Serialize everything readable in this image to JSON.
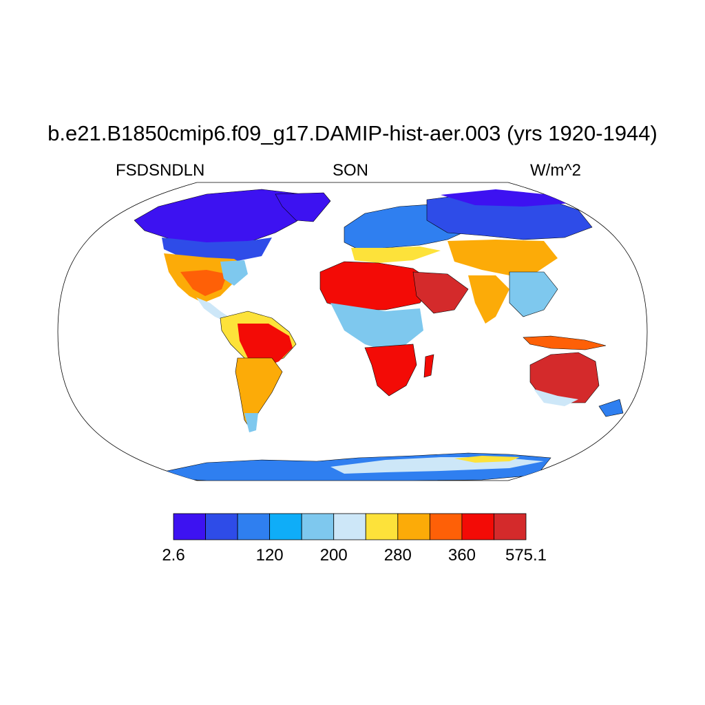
{
  "title": "b.e21.B1850cmip6.f09_g17.DAMIP-hist-aer.003 (yrs 1920-1944)",
  "variable": "FSDSNDLN",
  "season": "SON",
  "units": "W/m^2",
  "colors": {
    "land_outline": "#000000",
    "ocean": "#ffffff"
  },
  "colorbar": {
    "colors": [
      "#3d12f1",
      "#2e4ce8",
      "#2f7ff0",
      "#0fadf8",
      "#7ec8ee",
      "#cde7f8",
      "#fde23a",
      "#fcab08",
      "#fe6007",
      "#f30b06",
      "#d42a2b"
    ],
    "tick_labels": [
      "2.6",
      "120",
      "200",
      "280",
      "360",
      "575.1"
    ]
  },
  "chart_data": {
    "type": "heatmap",
    "projection": "Robinson",
    "title": "b.e21.B1850cmip6.f09_g17.DAMIP-hist-aer.003 (yrs 1920-1944)",
    "variable": "FSDSNDLN",
    "season": "SON",
    "units": "W/m^2",
    "range": [
      2.6,
      575.1
    ],
    "levels": [
      "2.6",
      "120",
      "200",
      "280",
      "360",
      "575.1"
    ],
    "regions": [
      {
        "name": "Arctic / northern high latitudes",
        "band": 0
      },
      {
        "name": "North America (north)",
        "band": 1
      },
      {
        "name": "North America (south-west)",
        "band": 7
      },
      {
        "name": "Central America",
        "band": 5
      },
      {
        "name": "South America (Amazon)",
        "band": 6
      },
      {
        "name": "South America (east)",
        "band": 9
      },
      {
        "name": "South America (south)",
        "band": 7
      },
      {
        "name": "Europe",
        "band": 2
      },
      {
        "name": "Sahara / North Africa",
        "band": 9
      },
      {
        "name": "Arabian Peninsula",
        "band": 10
      },
      {
        "name": "Central Africa",
        "band": 4
      },
      {
        "name": "Southern Africa",
        "band": 9
      },
      {
        "name": "Siberia",
        "band": 1
      },
      {
        "name": "Central Asia",
        "band": 7
      },
      {
        "name": "South Asia",
        "band": 7
      },
      {
        "name": "East Asia",
        "band": 4
      },
      {
        "name": "Australia",
        "band": 10
      },
      {
        "name": "Antarctica",
        "band": 2
      }
    ]
  }
}
